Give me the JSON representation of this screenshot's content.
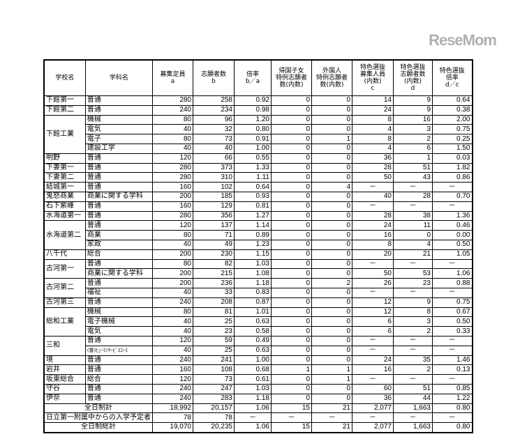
{
  "headers": [
    "学校名",
    "学科名",
    "募集定員\na",
    "志願者数\nb",
    "倍率\nb／a",
    "帰国子女\n特例志願者\n数(内数)",
    "外国人\n特例志願者\n数(内数)",
    "特色選抜\n募集人員\n(内数)\nc",
    "特色選抜\n志願者数\n(内数)\nd",
    "特色選抜\n倍率\nd／c"
  ],
  "schools": [
    {
      "name": "下館第一",
      "depts": [
        [
          "普通",
          "280",
          "258",
          "0.92",
          "0",
          "0",
          "14",
          "9",
          "0.64"
        ]
      ]
    },
    {
      "name": "下館第二",
      "depts": [
        [
          "普通",
          "240",
          "234",
          "0.98",
          "0",
          "0",
          "24",
          "9",
          "0.38"
        ]
      ]
    },
    {
      "name": "下館工業",
      "depts": [
        [
          "機械",
          "80",
          "96",
          "1.20",
          "0",
          "0",
          "8",
          "16",
          "2.00"
        ],
        [
          "電気",
          "40",
          "32",
          "0.80",
          "0",
          "0",
          "4",
          "3",
          "0.75"
        ],
        [
          "電子",
          "80",
          "73",
          "0.91",
          "0",
          "1",
          "8",
          "2",
          "0.25"
        ],
        [
          "建設工学",
          "40",
          "40",
          "1.00",
          "0",
          "0",
          "4",
          "6",
          "1.50"
        ]
      ]
    },
    {
      "name": "明野",
      "depts": [
        [
          "普通",
          "120",
          "66",
          "0.55",
          "0",
          "0",
          "36",
          "1",
          "0.03"
        ]
      ]
    },
    {
      "name": "下妻第一",
      "depts": [
        [
          "普通",
          "280",
          "373",
          "1.33",
          "0",
          "0",
          "28",
          "51",
          "1.82"
        ]
      ]
    },
    {
      "name": "下妻第二",
      "depts": [
        [
          "普通",
          "280",
          "310",
          "1.11",
          "0",
          "0",
          "50",
          "43",
          "0.86"
        ]
      ]
    },
    {
      "name": "結城第一",
      "depts": [
        [
          "普通",
          "160",
          "102",
          "0.64",
          "0",
          "4",
          "－",
          "－",
          "－"
        ]
      ]
    },
    {
      "name": "鬼怒商業",
      "depts": [
        [
          "商業に関する学科",
          "200",
          "185",
          "0.93",
          "0",
          "0",
          "40",
          "28",
          "0.70"
        ]
      ]
    },
    {
      "name": "石下紫峰",
      "depts": [
        [
          "普通",
          "160",
          "129",
          "0.81",
          "0",
          "0",
          "－",
          "－",
          "－"
        ]
      ]
    },
    {
      "name": "水海道第一",
      "depts": [
        [
          "普通",
          "280",
          "356",
          "1.27",
          "0",
          "0",
          "28",
          "38",
          "1.36"
        ]
      ]
    },
    {
      "name": "水海道第二",
      "depts": [
        [
          "普通",
          "120",
          "137",
          "1.14",
          "0",
          "0",
          "24",
          "11",
          "0.46"
        ],
        [
          "商業",
          "80",
          "71",
          "0.89",
          "0",
          "0",
          "16",
          "0",
          "0.00"
        ],
        [
          "家政",
          "40",
          "49",
          "1.23",
          "0",
          "0",
          "8",
          "4",
          "0.50"
        ]
      ]
    },
    {
      "name": "八千代",
      "depts": [
        [
          "総合",
          "200",
          "230",
          "1.15",
          "0",
          "0",
          "20",
          "21",
          "1.05"
        ]
      ]
    },
    {
      "name": "古河第一",
      "depts": [
        [
          "普通",
          "80",
          "82",
          "1.03",
          "0",
          "0",
          "－",
          "－",
          "－"
        ],
        [
          "商業に関する学科",
          "200",
          "215",
          "1.08",
          "0",
          "0",
          "50",
          "53",
          "1.06"
        ]
      ]
    },
    {
      "name": "古河第二",
      "depts": [
        [
          "普通",
          "200",
          "236",
          "1.18",
          "0",
          "2",
          "26",
          "23",
          "0.88"
        ],
        [
          "福祉",
          "40",
          "33",
          "0.83",
          "0",
          "0",
          "－",
          "－",
          "－"
        ]
      ]
    },
    {
      "name": "古河第三",
      "depts": [
        [
          "普通",
          "240",
          "208",
          "0.87",
          "0",
          "0",
          "12",
          "9",
          "0.75"
        ]
      ]
    },
    {
      "name": "総和工業",
      "depts": [
        [
          "機械",
          "80",
          "81",
          "1.01",
          "0",
          "0",
          "12",
          "8",
          "0.67"
        ],
        [
          "電子機械",
          "40",
          "25",
          "0.63",
          "0",
          "0",
          "6",
          "3",
          "0.50"
        ],
        [
          "電気",
          "40",
          "23",
          "0.58",
          "0",
          "0",
          "6",
          "2",
          "0.33"
        ]
      ]
    },
    {
      "name": "三和",
      "depts": [
        [
          "普通",
          "120",
          "59",
          "0.49",
          "0",
          "0",
          "－",
          "－",
          "－"
        ],
        [
          "(普)ﾋｭｰﾏﾝｻｰﾋﾞｽｺｰｽ",
          "40",
          "25",
          "0.63",
          "0",
          "0",
          "－",
          "－",
          "－"
        ]
      ]
    },
    {
      "name": "境",
      "depts": [
        [
          "普通",
          "240",
          "241",
          "1.00",
          "0",
          "0",
          "24",
          "35",
          "1.46"
        ]
      ]
    },
    {
      "name": "岩井",
      "depts": [
        [
          "普通",
          "160",
          "108",
          "0.68",
          "1",
          "1",
          "16",
          "2",
          "0.13"
        ]
      ]
    },
    {
      "name": "坂東総合",
      "depts": [
        [
          "総合",
          "120",
          "73",
          "0.61",
          "0",
          "1",
          "－",
          "－",
          "－"
        ]
      ]
    },
    {
      "name": "守谷",
      "depts": [
        [
          "普通",
          "240",
          "247",
          "1.03",
          "0",
          "0",
          "60",
          "51",
          "0.85"
        ]
      ]
    },
    {
      "name": "伊奈",
      "depts": [
        [
          "普通",
          "240",
          "283",
          "1.18",
          "0",
          "0",
          "36",
          "44",
          "1.22"
        ]
      ]
    }
  ],
  "totals": [
    {
      "label": "全日制計",
      "values": [
        "18,992",
        "20,157",
        "1.06",
        "15",
        "21",
        "2,077",
        "1,663",
        "0.80"
      ]
    },
    {
      "label": "日立第一附属中からの入学予定者",
      "values": [
        "78",
        "78",
        "－",
        "－",
        "－",
        "－",
        "－",
        "－"
      ]
    },
    {
      "label": "全日制総計",
      "values": [
        "19,070",
        "20,235",
        "1.06",
        "15",
        "21",
        "2,077",
        "1,663",
        "0.80"
      ]
    }
  ],
  "watermark": "ReseMom"
}
